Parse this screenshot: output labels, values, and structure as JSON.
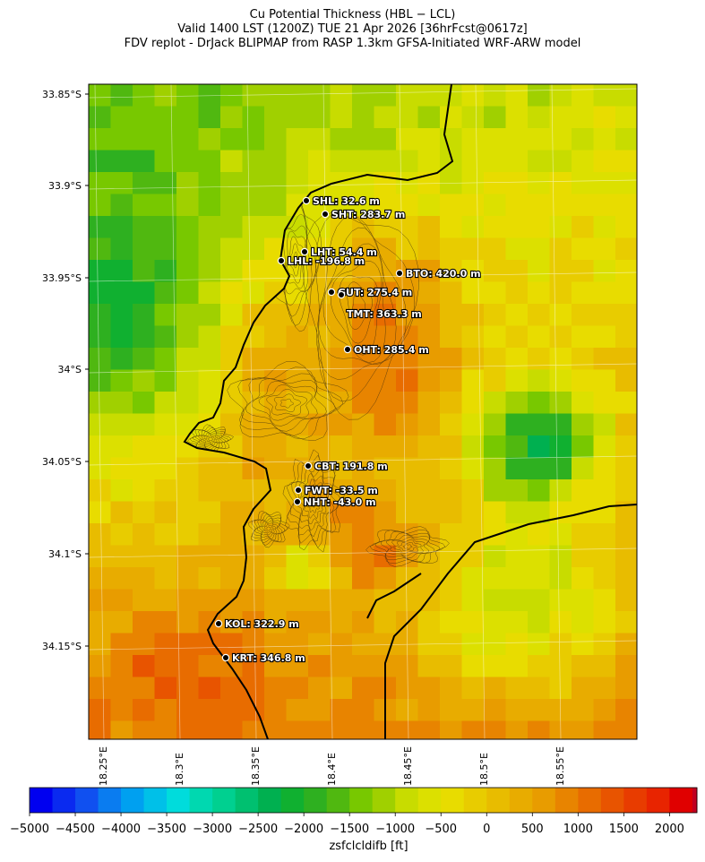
{
  "title": {
    "line1": "Cu Potential Thickness (HBL − LCL)",
    "line2": "Valid 1400 LST (1200Z) TUE 21 Apr 2026 [36hrFcst@0617z]",
    "line3": "FDV replot - DrJack BLIPMAP from RASP 1.3km GFSA-Initiated WRF-ARW model"
  },
  "lat_ticks": [
    "33.85°S",
    "33.9°S",
    "33.95°S",
    "34°S",
    "34.05°S",
    "34.1°S",
    "34.15°S"
  ],
  "lon_ticks": [
    "18.25°E",
    "18.3°E",
    "18.35°E",
    "18.4°E",
    "18.45°E",
    "18.5°E",
    "18.55°E"
  ],
  "stations": [
    {
      "code": "SHL",
      "label": "SHL: 32.6 m",
      "value": 32.6
    },
    {
      "code": "SHT",
      "label": "SHT: 283.7 m",
      "value": 283.7
    },
    {
      "code": "LHT",
      "label": "LHT: 54.4 m",
      "value": 54.4
    },
    {
      "code": "LHL",
      "label": "LHL: -196.8 m",
      "value": -196.8
    },
    {
      "code": "BTO",
      "label": "BTO: 420.0 m",
      "value": 420.0
    },
    {
      "code": "GUT",
      "label": "GUT: 275.4 m",
      "value": 275.4
    },
    {
      "code": "TMT",
      "label": "TMT: 363.3 m",
      "value": 363.3
    },
    {
      "code": "OHT",
      "label": "OHT: 285.4 m",
      "value": 285.4
    },
    {
      "code": "CBT",
      "label": "CBT: 191.8 m",
      "value": 191.8
    },
    {
      "code": "FWT",
      "label": "FWT: -33.5 m",
      "value": -33.5
    },
    {
      "code": "NHT",
      "label": "NHT: -43.0 m",
      "value": -43.0
    },
    {
      "code": "KOL",
      "label": "KOL: 322.9 m",
      "value": 322.9
    },
    {
      "code": "KRT",
      "label": "KRT: 346.8 m",
      "value": 346.8
    }
  ],
  "colorbar": {
    "label": "zsfclcldifb [ft]",
    "min": -5000,
    "max": 2300,
    "step": 250,
    "tick_labels": [
      "−5000",
      "−4500",
      "−4000",
      "−3500",
      "−3000",
      "−2500",
      "−2000",
      "−1500",
      "−1000",
      "−500",
      "0",
      "500",
      "1000",
      "1500",
      "2000"
    ],
    "tick_values": [
      -5000,
      -4500,
      -4000,
      -3500,
      -3000,
      -2500,
      -2000,
      -1500,
      -1000,
      -500,
      0,
      500,
      1000,
      1500,
      2000
    ],
    "colors": [
      "#0000f0",
      "#0a2af0",
      "#1050f0",
      "#0a7cf0",
      "#00a0f0",
      "#00c0e8",
      "#00dcdc",
      "#00d8b0",
      "#00d090",
      "#00c070",
      "#00b050",
      "#10b030",
      "#2eb020",
      "#50b810",
      "#78c800",
      "#a0d000",
      "#c8dc00",
      "#dce000",
      "#e8dc00",
      "#e8cc00",
      "#e8bc00",
      "#e8ac00",
      "#e89c00",
      "#e88400",
      "#e86c00",
      "#e85400",
      "#e83c00",
      "#e82400",
      "#e00000",
      "#c00020"
    ]
  },
  "chart_data": {
    "type": "heatmap",
    "variable": "zsfclcldifb",
    "units": "ft",
    "lat_range": [
      -34.2,
      -33.84
    ],
    "lon_range": [
      18.24,
      18.6
    ],
    "station_values_m": {
      "SHL": 32.6,
      "SHT": 283.7,
      "LHT": 54.4,
      "LHL": -196.8,
      "BTO": 420.0,
      "GUT": 275.4,
      "TMT": 363.3,
      "OHT": 285.4,
      "CBT": 191.8,
      "FWT": -33.5,
      "NHT": -43.0,
      "KOL": 322.9,
      "KRT": 346.8
    }
  }
}
